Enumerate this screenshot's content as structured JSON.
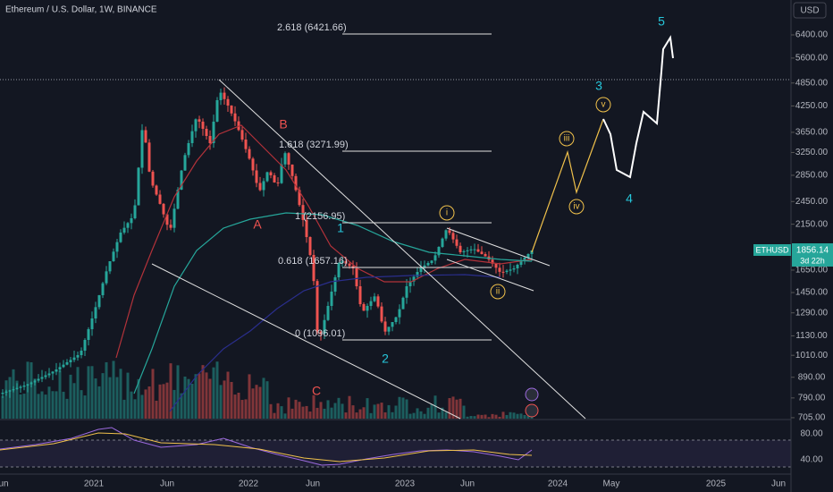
{
  "header": {
    "title": "Ethereum / U.S. Dollar, 1W, BINANCE",
    "currency": "USD"
  },
  "price_axis": {
    "log_scale": true,
    "ticks": [
      {
        "value": 6400,
        "label": "6400.00"
      },
      {
        "value": 5600,
        "label": "5600.00"
      },
      {
        "value": 4850,
        "label": "4850.00"
      },
      {
        "value": 4250,
        "label": "4250.00"
      },
      {
        "value": 3650,
        "label": "3650.00"
      },
      {
        "value": 3250,
        "label": "3250.00"
      },
      {
        "value": 2850,
        "label": "2850.00"
      },
      {
        "value": 2450,
        "label": "2450.00"
      },
      {
        "value": 2150,
        "label": "2150.00"
      },
      {
        "value": 1650,
        "label": "1650.00"
      },
      {
        "value": 1450,
        "label": "1450.00"
      },
      {
        "value": 1290,
        "label": "1290.00"
      },
      {
        "value": 1130,
        "label": "1130.00"
      },
      {
        "value": 1010,
        "label": "1010.00"
      },
      {
        "value": 890,
        "label": "890.00"
      },
      {
        "value": 790,
        "label": "790.00"
      },
      {
        "value": 705,
        "label": "705.00"
      }
    ]
  },
  "last_price": {
    "symbol": "ETHUSD",
    "price": "1856.14",
    "countdown": "3d 22h"
  },
  "rsi_axis": {
    "ticks": [
      "80.00",
      "40.00"
    ]
  },
  "time_axis": {
    "labels": [
      "un",
      "2021",
      "Jun",
      "2022",
      "Jun",
      "2023",
      "Jun",
      "2024",
      "May",
      "2025",
      "Jun"
    ]
  },
  "fib_levels": [
    {
      "label": "2.618 (6421.66)"
    },
    {
      "label": "1.618 (3271.99)"
    },
    {
      "label": "1 (2156.95)"
    },
    {
      "label": "0.618 (1657.16)"
    },
    {
      "label": "0 (1096.01)"
    }
  ],
  "wave_labels": [
    "5",
    "3",
    "4",
    "2",
    "1",
    "A",
    "B",
    "C"
  ],
  "sub_wave_labels": [
    "i",
    "ii",
    "iii",
    "iv",
    "v"
  ]
}
